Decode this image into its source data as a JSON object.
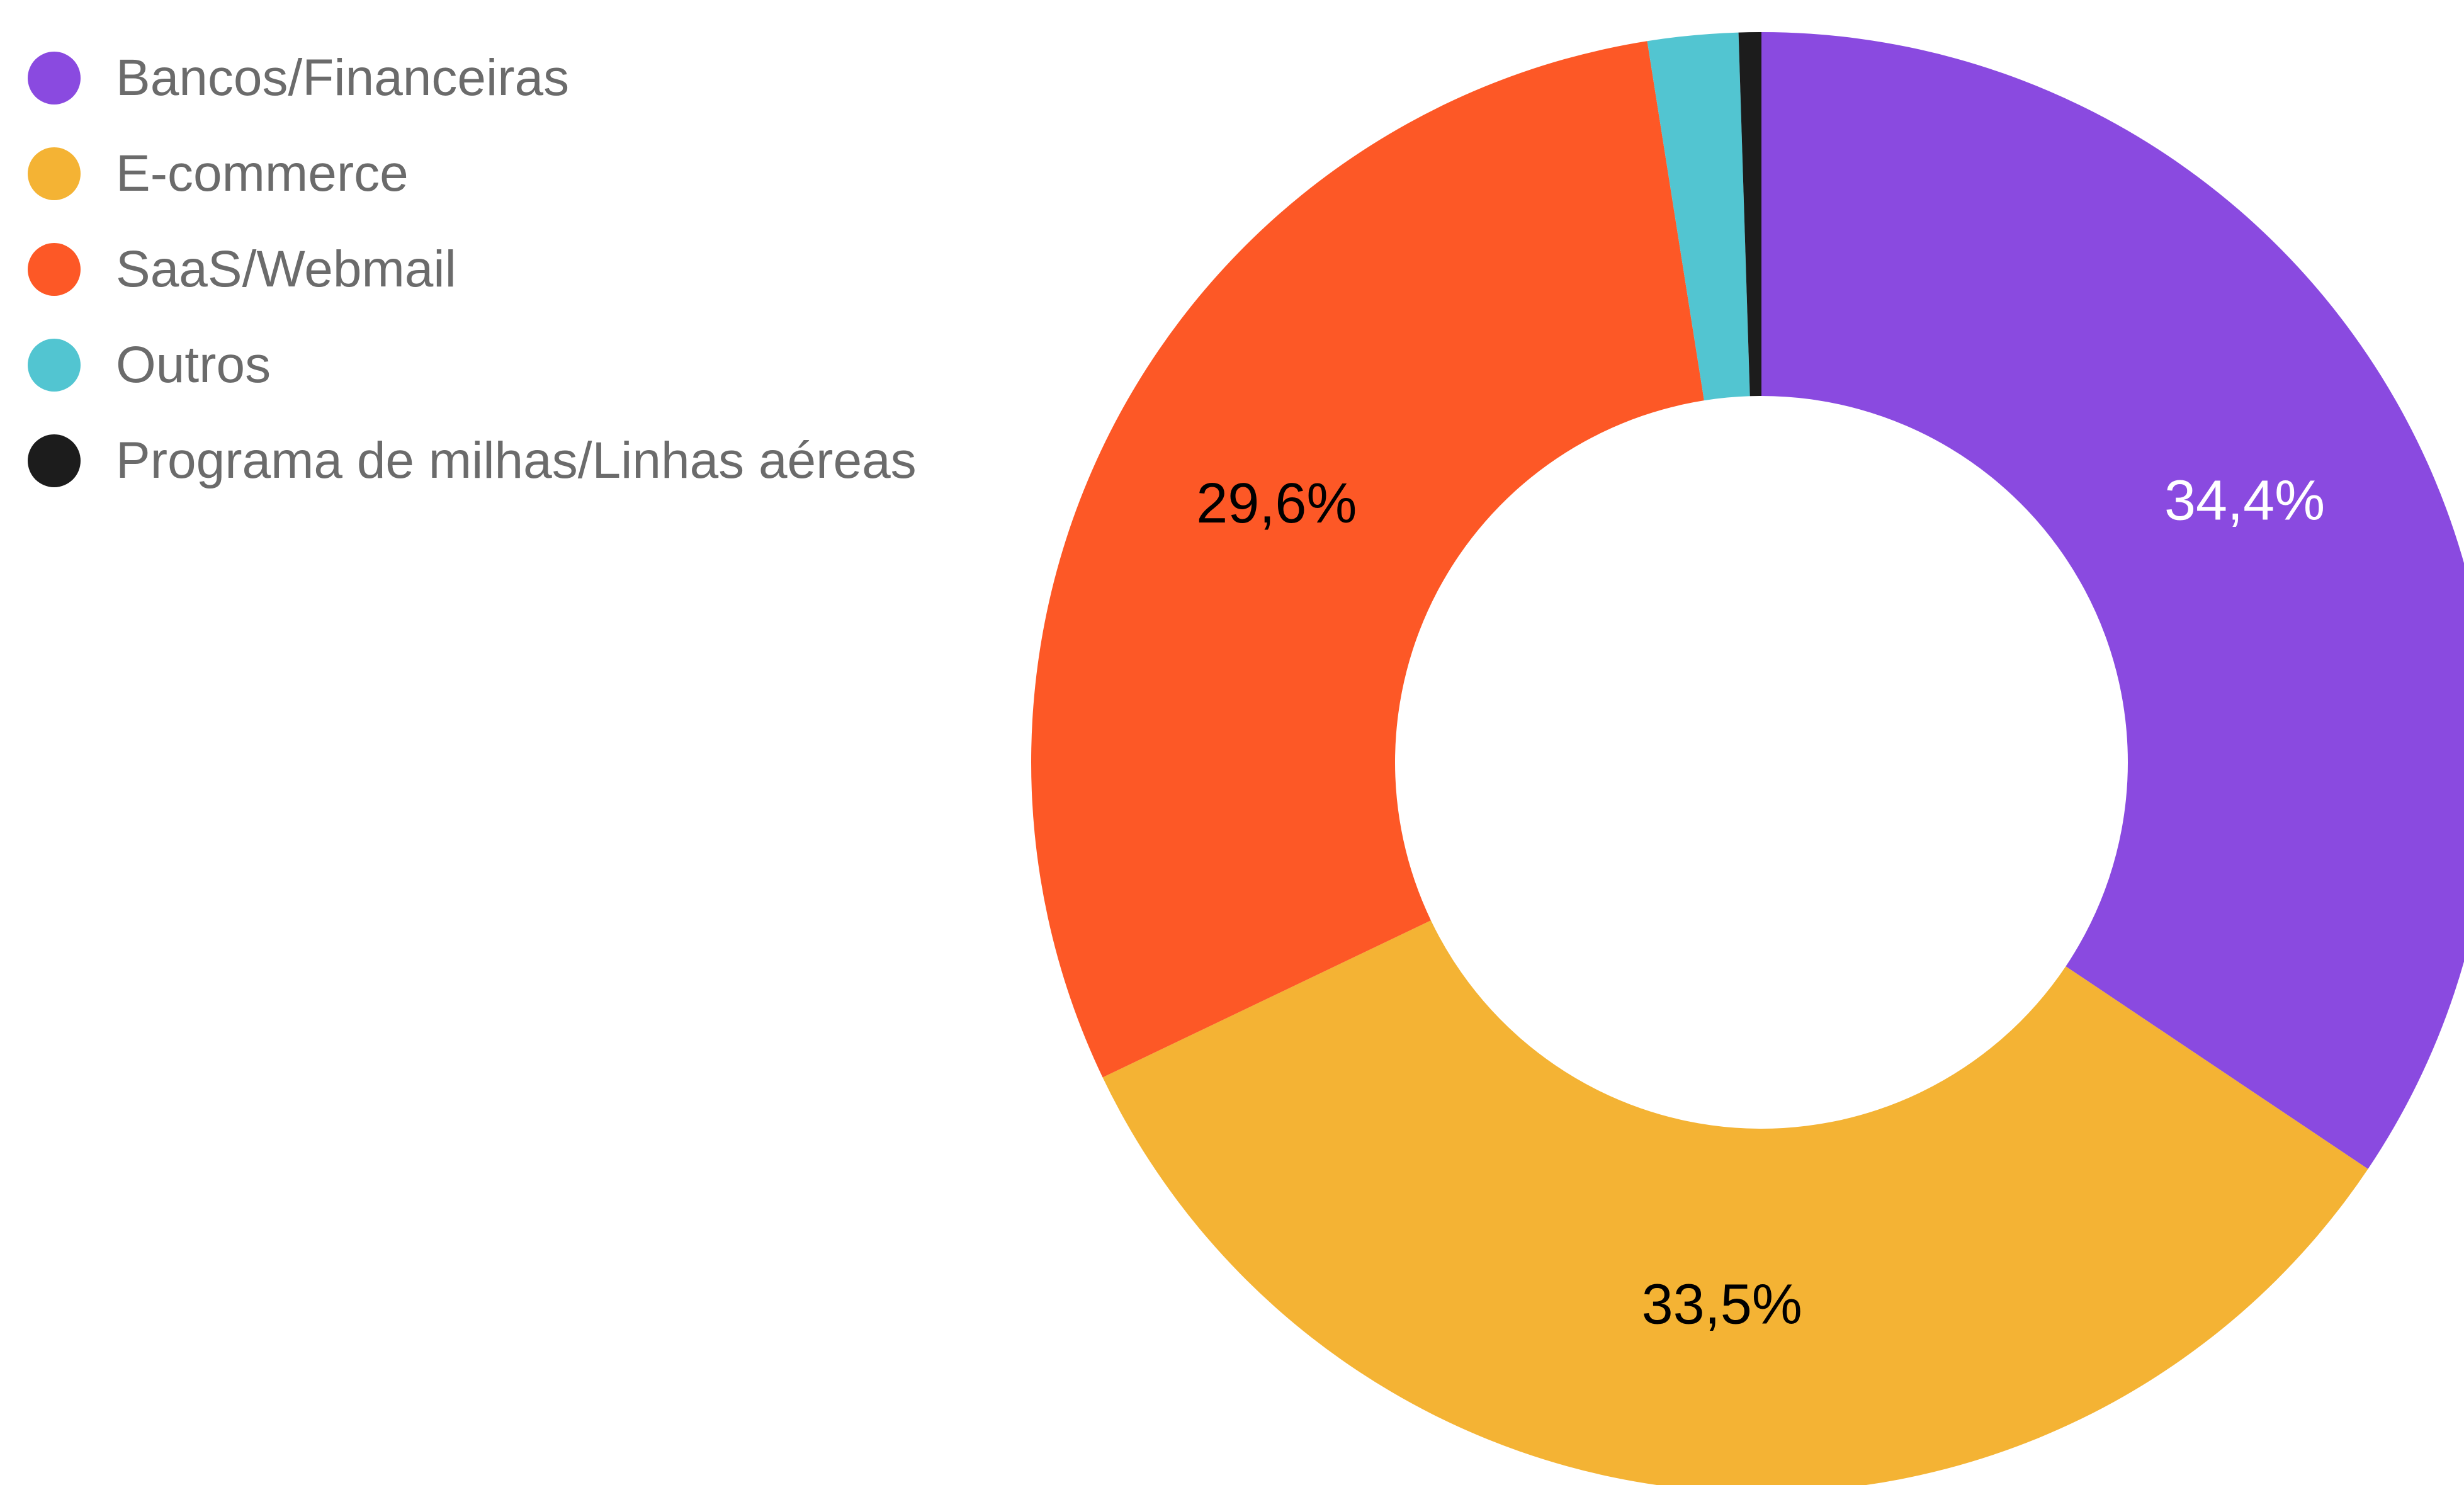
{
  "chart_data": {
    "type": "pie",
    "donut": true,
    "legend_position": "top-left",
    "slices": [
      {
        "name": "Bancos/Financeiras",
        "value": 34.4,
        "label": "34,4%",
        "color": "#8a4ae0",
        "label_color": "#ffffff"
      },
      {
        "name": "E-commerce",
        "value": 33.5,
        "label": "33,5%",
        "color": "#f4b334",
        "label_color": "#000000"
      },
      {
        "name": "SaaS/Webmail",
        "value": 29.6,
        "label": "29,6%",
        "color": "#fd5826",
        "label_color": "#000000"
      },
      {
        "name": "Outros",
        "value": 2.0,
        "label": "",
        "color": "#52c5d1",
        "label_color": "#000000"
      },
      {
        "name": "Programa de milhas/Linhas aéreas",
        "value": 0.5,
        "label": "",
        "color": "#1c1c1c",
        "label_color": "#000000"
      }
    ]
  }
}
